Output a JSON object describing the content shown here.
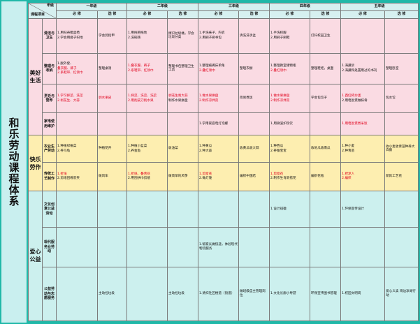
{
  "title": "和乐劳动课程体系",
  "corner": {
    "grade": "年级",
    "project": "课程项目"
  },
  "grades": [
    "一年级",
    "二年级",
    "三年级",
    "四年级",
    "五年级"
  ],
  "col_labels": {
    "required": "必 修",
    "elective": "选 修"
  },
  "categories": [
    {
      "name": "美好生活",
      "color": "#fadbe3"
    },
    {
      "name": "快乐劳作",
      "color": "#fdeeb0"
    },
    {
      "name": "爱心公益",
      "color": "#ccf0ee"
    }
  ],
  "rows": [
    {
      "sub": "清洁与卫生",
      "cells": [
        [
          {
            "t": "1.用扫帚擦桌椅"
          },
          {
            "t": "2.学会用君子扫地"
          }
        ],
        [
          {
            "t": "学会剪指甲"
          }
        ],
        [
          {
            "t": "1.用拖把拖地"
          },
          {
            "t": "2.洗碗筷"
          }
        ],
        [
          {
            "t": "擦识拉圾桶，学会垃圾分类"
          }
        ],
        [
          {
            "t": "1.手洗袜子、内衣"
          },
          {
            "t": "2.用刷子刷书包"
          }
        ],
        [
          {
            "t": "清洗洗手盆"
          }
        ],
        [
          {
            "t": "1.手洗校服"
          },
          {
            "t": "2.用刷子刷鞋"
          }
        ],
        [
          {
            "t": "打扫校园卫生"
          }
        ],
        [],
        []
      ]
    },
    {
      "sub": "整理与收纳",
      "cells": [
        [
          {
            "t": "1.脱外套、"
          },
          {
            "t": "叠衣服、裤子",
            "r": true
          },
          {
            "t": "2.系鞋带、红领巾",
            "r": true
          }
        ],
        [
          {
            "t": "整理桌洞"
          }
        ],
        [
          {
            "t": "1.叠衣服、裤子",
            "r": true
          },
          {
            "t": "2.系鞋带、红领巾",
            "r": true
          }
        ],
        [
          {
            "t": "整理书包整理卫生工具"
          }
        ],
        [
          {
            "t": "1.整理被褥床单角"
          },
          {
            "t": "2.叠红领巾",
            "r": true
          }
        ],
        [
          {
            "t": "整理衣橱"
          }
        ],
        [
          {
            "t": "1.整理教室储物柜"
          },
          {
            "t": "2.叠红领巾",
            "r": true
          }
        ],
        [
          {
            "t": "整理鞋柜，桌面"
          }
        ],
        [
          {
            "t": "1.海藏诉"
          },
          {
            "t": "2.海藏和处置用过的书刊"
          }
        ],
        [
          {
            "t": "整理卧室"
          }
        ]
      ]
    },
    {
      "sub": "烹饪与营养",
      "cells": [
        [
          {
            "t": "1.学习择菜、洗菜",
            "r": true
          },
          {
            "t": "2.剥花生、大蒜",
            "r": true
          }
        ],
        [
          {
            "t": "剥水果皮",
            "r": true
          }
        ],
        [
          {
            "t": "1.择菜、洗菜、洗菜",
            "r": true
          },
          {
            "t": "2.用削皮刀削水果",
            "r": true
          }
        ],
        [
          {
            "t": "剥花生剥大蒜",
            "r": true
          },
          {
            "t": "制作水果拼盘"
          }
        ],
        [
          {
            "t": "1.做水果拼盘",
            "r": true
          },
          {
            "t": "2.制作凉拌菜",
            "r": true
          }
        ],
        [
          {
            "t": "简易煮饭"
          }
        ],
        [
          {
            "t": "1.做水果拼盘",
            "r": true
          },
          {
            "t": "2.制作凉拌菜",
            "r": true
          }
        ],
        [
          {
            "t": "学会包饺子"
          }
        ],
        [
          {
            "t": "1.西红柿炒蛋",
            "r": true
          },
          {
            "t": "2.用电饭煲做排骨"
          }
        ],
        [
          {
            "t": "包水饺"
          }
        ]
      ]
    },
    {
      "sub": "家电使用维护",
      "cells": [
        [],
        [],
        [],
        [],
        [
          {
            "t": "1.学用家庭电灯泡螺"
          }
        ],
        [],
        [
          {
            "t": "1.用微波炉热饮"
          }
        ],
        [],
        [
          {
            "t": "1.用电饭煲煮米饭",
            "r": true
          }
        ],
        []
      ]
    },
    {
      "sub": "农业生产劳动",
      "cells": [
        [
          {
            "t": "1.种植绿植菜"
          },
          {
            "t": "2.养乌龟"
          }
        ],
        [
          {
            "t": "种植花卉"
          }
        ],
        [
          {
            "t": "1.种植小盆菜"
          },
          {
            "t": "2.养金鱼"
          }
        ],
        [
          {
            "t": "收油菜"
          }
        ],
        [
          {
            "t": "1.种黄瓜"
          },
          {
            "t": "2.种大蒜"
          }
        ],
        [
          {
            "t": "收黄瓜收大蒜"
          }
        ],
        [
          {
            "t": "1.种西瓜"
          },
          {
            "t": "2.养蚕宝宝"
          }
        ],
        [
          {
            "t": "收地瓜收南瓜"
          }
        ],
        [
          {
            "t": "1.种小麦"
          },
          {
            "t": "2.种青苗"
          }
        ],
        [
          {
            "t": "收小麦收青苗种养大白鹅"
          }
        ]
      ]
    },
    {
      "sub": "传统工艺制作",
      "cells": [
        [
          {
            "t": "1.折纸",
            "r": true
          },
          {
            "t": "2.剪纸团缠装夹"
          }
        ],
        [
          {
            "t": "做风车"
          }
        ],
        [
          {
            "t": "1.折纸、叠青花",
            "r": true
          },
          {
            "t": "2.用围拼巾剪纸"
          }
        ],
        [
          {
            "t": "做简单的风筝"
          }
        ],
        [
          {
            "t": "1.剪窗花",
            "r": true
          },
          {
            "t": "2.做灯笼"
          }
        ],
        [
          {
            "t": "编织中国结"
          }
        ],
        [
          {
            "t": "1.剪窗花",
            "r": true
          },
          {
            "t": "2.制作生肖新搭花"
          }
        ],
        [
          {
            "t": "编织花瓶"
          }
        ],
        [
          {
            "t": "1.捏泥人",
            "r": true
          },
          {
            "t": "2.编织",
            "r": true
          }
        ],
        [
          {
            "t": "新款工艺花"
          }
        ]
      ]
    },
    {
      "sub": "文化创意公益劳动",
      "cells": [
        [],
        [],
        [],
        [],
        [],
        [],
        [
          {
            "t": "1.设计班徽"
          }
        ],
        [],
        [
          {
            "t": "1.环保宣传设计"
          }
        ],
        []
      ]
    },
    {
      "sub": "现代服务业劳动",
      "cells": [
        [],
        [],
        [],
        [],
        [
          {
            "t": "1.帮家长做快递，体验现代物流服务"
          }
        ],
        [],
        [],
        [],
        [],
        []
      ]
    },
    {
      "sub": "公益劳动与志愿服务",
      "cells": [
        [],
        [
          {
            "t": "主动捡垃圾"
          }
        ],
        [],
        [
          {
            "t": "主动捡垃圾"
          }
        ],
        [
          {
            "t": "1.清扫社区楼道（街道）"
          }
        ],
        [
          {
            "t": "做班级自主管理岗位"
          }
        ],
        [
          {
            "t": "1.文化长廊小导游"
          }
        ],
        [
          {
            "t": "环保宣传图书管理"
          }
        ],
        [
          {
            "t": "1.校园文明岗"
          }
        ],
        [
          {
            "t": "爱心义卖 海边净滩行动"
          }
        ]
      ]
    }
  ]
}
